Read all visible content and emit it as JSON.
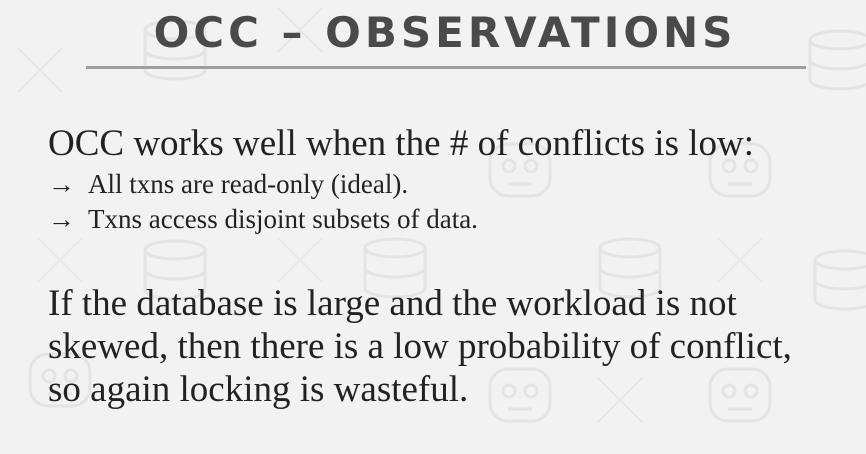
{
  "slide": {
    "title": "OCC – OBSERVATIONS",
    "lead": "OCC works well when the # of conflicts is low:",
    "bullets": [
      {
        "arrow": "→",
        "text": "All txns are read-only (ideal)."
      },
      {
        "arrow": "→",
        "text": "Txns access disjoint subsets of data."
      }
    ],
    "paragraph_lines": [
      "If the database is large and the workload is not",
      "skewed, then there is a low probability of conflict,",
      "so again locking is wasteful."
    ]
  },
  "colors": {
    "background": "#f2f2f2",
    "title": "#4a4a4a",
    "rule": "#9e9e9e",
    "body_text": "#222222",
    "pattern": "#e6e6e6"
  },
  "icons": [
    "database-icon",
    "robot-icon",
    "cross-icon"
  ]
}
